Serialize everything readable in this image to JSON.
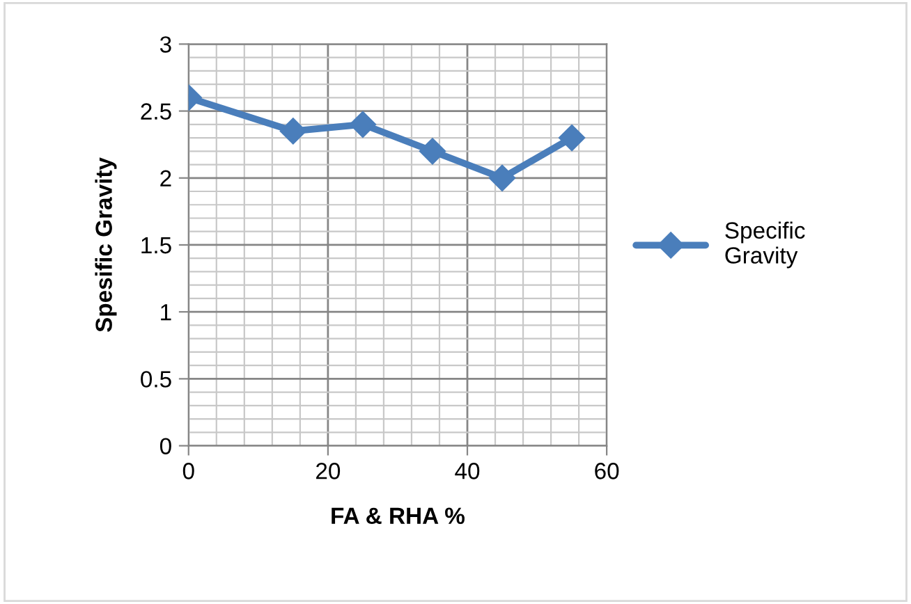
{
  "chart_data": {
    "type": "line",
    "xlabel": "FA & RHA %",
    "ylabel": "Spesific Gravity",
    "series": [
      {
        "name": "Specific Gravity",
        "color": "#4a7ebb",
        "x": [
          0,
          15,
          25,
          35,
          45,
          55
        ],
        "values": [
          2.6,
          2.35,
          2.4,
          2.2,
          2.0,
          2.3
        ]
      }
    ],
    "xlim": [
      0,
      60
    ],
    "xticks": [
      0,
      20,
      40,
      60
    ],
    "ylim": [
      0,
      3
    ],
    "yticks": [
      0,
      0.5,
      1,
      1.5,
      2,
      2.5,
      3
    ],
    "grid": true,
    "legend": "right",
    "marker": "diamond",
    "line_style": "solid"
  }
}
